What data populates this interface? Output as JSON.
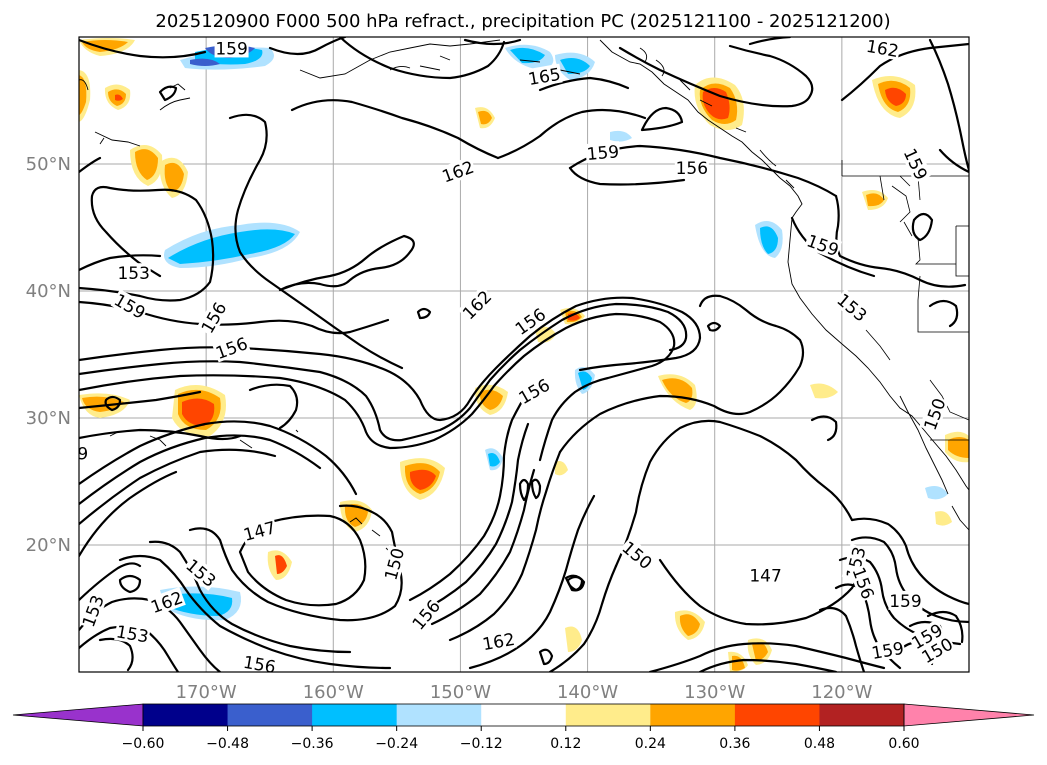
{
  "map": {
    "title": "2025120900 F000 500 hPa refract., precipitation PC (2025121100 - 2025121200)",
    "extent": {
      "lon": [
        -180,
        -110
      ],
      "lat": [
        10,
        60
      ]
    },
    "gridlines": true,
    "lat_labels": [
      {
        "lat": 50,
        "text": "50°N"
      },
      {
        "lat": 40,
        "text": "40°N"
      },
      {
        "lat": 30,
        "text": "30°N"
      },
      {
        "lat": 20,
        "text": "20°N"
      }
    ],
    "lon_labels": [
      {
        "lon": -170,
        "text": "170°W"
      },
      {
        "lon": -160,
        "text": "160°W"
      },
      {
        "lon": -150,
        "text": "150°W"
      },
      {
        "lon": -140,
        "text": "140°W"
      },
      {
        "lon": -130,
        "text": "130°W"
      },
      {
        "lon": -120,
        "text": "120°W"
      }
    ],
    "contour_labels": [
      {
        "text": "159",
        "lon": -168.0,
        "lat": 59.1,
        "rot": 0
      },
      {
        "text": "165",
        "lon": -143.4,
        "lat": 56.9,
        "rot": -10
      },
      {
        "text": "162",
        "lon": -116.8,
        "lat": 59.1,
        "rot": 10
      },
      {
        "text": "162",
        "lon": -150.2,
        "lat": 49.4,
        "rot": -20
      },
      {
        "text": "159",
        "lon": -138.8,
        "lat": 50.9,
        "rot": -5
      },
      {
        "text": "156",
        "lon": -131.8,
        "lat": 49.7,
        "rot": 0
      },
      {
        "text": "159",
        "lon": -114.2,
        "lat": 50.0,
        "rot": 65
      },
      {
        "text": "153",
        "lon": -175.7,
        "lat": 41.4,
        "rot": 0
      },
      {
        "text": "159",
        "lon": -121.5,
        "lat": 43.6,
        "rot": 20
      },
      {
        "text": "159",
        "lon": -176.0,
        "lat": 38.8,
        "rot": 30
      },
      {
        "text": "156",
        "lon": -169.4,
        "lat": 37.9,
        "rot": -60
      },
      {
        "text": "162",
        "lon": -148.7,
        "lat": 38.9,
        "rot": -45
      },
      {
        "text": "156",
        "lon": -144.5,
        "lat": 37.6,
        "rot": -35
      },
      {
        "text": "153",
        "lon": -119.2,
        "lat": 38.7,
        "rot": 40
      },
      {
        "text": "156",
        "lon": -168.0,
        "lat": 35.5,
        "rot": -20
      },
      {
        "text": "156",
        "lon": -144.2,
        "lat": 32.1,
        "rot": -30
      },
      {
        "text": "150",
        "lon": -112.7,
        "lat": 30.3,
        "rot": -70
      },
      {
        "text": "147",
        "lon": -165.8,
        "lat": 21.1,
        "rot": -15
      },
      {
        "text": "150",
        "lon": -155.2,
        "lat": 18.5,
        "rot": -75
      },
      {
        "text": "150",
        "lon": -136.1,
        "lat": 19.2,
        "rot": 40
      },
      {
        "text": "147",
        "lon": -126.0,
        "lat": 17.6,
        "rot": 0
      },
      {
        "text": "153",
        "lon": -118.9,
        "lat": 18.6,
        "rot": -75
      },
      {
        "text": "156",
        "lon": -118.3,
        "lat": 17.0,
        "rot": 70
      },
      {
        "text": "159",
        "lon": -115.0,
        "lat": 15.6,
        "rot": 0
      },
      {
        "text": "153",
        "lon": -170.4,
        "lat": 17.8,
        "rot": 40
      },
      {
        "text": "162",
        "lon": -173.1,
        "lat": 15.5,
        "rot": -20
      },
      {
        "text": "153",
        "lon": -178.9,
        "lat": 14.8,
        "rot": -70
      },
      {
        "text": "153",
        "lon": -175.8,
        "lat": 13.0,
        "rot": 10
      },
      {
        "text": "156",
        "lon": -165.8,
        "lat": 10.6,
        "rot": 10
      },
      {
        "text": "156",
        "lon": -152.7,
        "lat": 14.5,
        "rot": -50
      },
      {
        "text": "162",
        "lon": -147.0,
        "lat": 12.4,
        "rot": -10
      },
      {
        "text": "159",
        "lon": -116.4,
        "lat": 11.7,
        "rot": -10
      },
      {
        "text": "159",
        "lon": -113.3,
        "lat": 12.8,
        "rot": -30
      },
      {
        "text": "150",
        "lon": -112.5,
        "lat": 11.7,
        "rot": -30
      },
      {
        "text": "9",
        "lon": -179.7,
        "lat": 27.2,
        "rot": 0
      }
    ]
  },
  "colorbar": {
    "levels": [
      -0.6,
      -0.48,
      -0.36,
      -0.24,
      -0.12,
      0.12,
      0.24,
      0.36,
      0.48,
      0.6
    ],
    "tick_labels": [
      "−0.60",
      "−0.48",
      "−0.36",
      "−0.24",
      "−0.12",
      "0.12",
      "0.24",
      "0.36",
      "0.48",
      "0.60"
    ],
    "colors": [
      "#9932cc",
      "#00008b",
      "#3a5fcd",
      "#00bfff",
      "#b0e2ff",
      "#ffffff",
      "#ffec8b",
      "#ffa500",
      "#ff4500",
      "#b22222",
      "#ff82ab"
    ]
  }
}
